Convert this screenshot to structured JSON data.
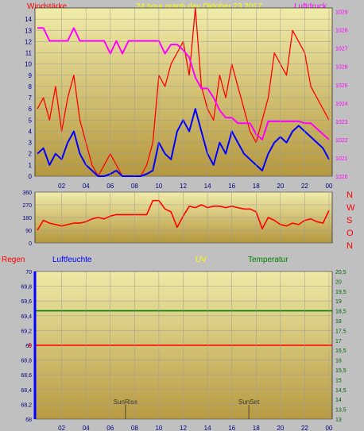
{
  "header": {
    "left_label": "Windstärke",
    "title": "24 hour graph day   Oktober 23 2017",
    "right_label": "Luftdruck"
  },
  "colors": {
    "panel_top": "#f0ecaa",
    "panel_bottom": "#b5973e",
    "grid": "#9c9c9c",
    "red": "#ff0000",
    "blue": "#0000ff",
    "magenta": "#ff00ff",
    "yellow": "#ffff00",
    "green": "#008000",
    "dark_green": "#006400"
  },
  "x_ticks": [
    "02",
    "04",
    "06",
    "08",
    "10",
    "12",
    "14",
    "16",
    "18",
    "20",
    "22",
    "00"
  ],
  "chart_data": [
    {
      "type": "line",
      "series": [
        {
          "axis": "left",
          "color": "#ff0000",
          "x": [
            0,
            0.5,
            1,
            1.5,
            2,
            2.5,
            3,
            3.5,
            4,
            4.5,
            5,
            5.5,
            6,
            6.5,
            7,
            7.5,
            8,
            8.5,
            9,
            9.5,
            10,
            10.5,
            11,
            11.5,
            12,
            12.5,
            13,
            13.5,
            14,
            14.5,
            15,
            15.5,
            16,
            16.5,
            17,
            17.5,
            18,
            18.5,
            19,
            19.5,
            20,
            20.5,
            21,
            21.5,
            22,
            22.5,
            23,
            23.5,
            24
          ],
          "y": [
            6,
            7,
            5,
            8,
            4,
            7,
            9,
            5,
            3,
            1,
            0,
            1,
            2,
            1,
            0,
            0,
            0,
            0,
            1,
            3,
            9,
            8,
            10,
            11,
            12,
            9,
            15,
            8,
            6,
            5,
            9,
            7,
            10,
            8,
            6,
            4,
            3,
            5,
            7,
            11,
            10,
            9,
            13,
            12,
            11,
            8,
            7,
            6,
            5
          ]
        },
        {
          "axis": "left",
          "color": "#0000ff",
          "x": [
            0,
            0.5,
            1,
            1.5,
            2,
            2.5,
            3,
            3.5,
            4,
            4.5,
            5,
            5.5,
            6,
            6.5,
            7,
            7.5,
            8,
            8.5,
            9,
            9.5,
            10,
            10.5,
            11,
            11.5,
            12,
            12.5,
            13,
            13.5,
            14,
            14.5,
            15,
            15.5,
            16,
            16.5,
            17,
            17.5,
            18,
            18.5,
            19,
            19.5,
            20,
            20.5,
            21,
            21.5,
            22,
            22.5,
            23,
            23.5,
            24
          ],
          "y": [
            2,
            2.5,
            1,
            2,
            1.5,
            3,
            4,
            2,
            1,
            0.5,
            0,
            0,
            0.2,
            0.5,
            0,
            0,
            0,
            0,
            0.2,
            0.5,
            3,
            2,
            1.5,
            4,
            5,
            4,
            6,
            4,
            2,
            1,
            3,
            2,
            4,
            3,
            2,
            1.5,
            1,
            0.5,
            2,
            3,
            3.5,
            3,
            4,
            4.5,
            4,
            3.5,
            3,
            2.5,
            1.5
          ]
        },
        {
          "axis": "right",
          "color": "#ff00ff",
          "x": [
            0,
            0.5,
            1,
            1.5,
            2,
            2.5,
            3,
            3.5,
            4,
            4.5,
            5,
            5.5,
            6,
            6.5,
            7,
            7.5,
            8,
            8.5,
            9,
            9.5,
            10,
            10.5,
            11,
            11.5,
            12,
            12.5,
            13,
            13.5,
            14,
            14.5,
            15,
            15.5,
            16,
            16.5,
            17,
            17.5,
            18,
            18.5,
            19,
            19.5,
            20,
            20.5,
            21,
            21.5,
            22,
            22.5,
            23,
            23.5,
            24
          ],
          "y": [
            1028.1,
            1028.1,
            1027.4,
            1027.4,
            1027.4,
            1027.4,
            1028.1,
            1027.4,
            1027.4,
            1027.4,
            1027.4,
            1027.4,
            1026.7,
            1027.4,
            1026.7,
            1027.4,
            1027.4,
            1027.4,
            1027.4,
            1027.4,
            1027.4,
            1026.7,
            1027.2,
            1027.2,
            1026.9,
            1026.5,
            1025.4,
            1024.8,
            1024.8,
            1024.3,
            1023.6,
            1023.2,
            1023.2,
            1022.9,
            1022.9,
            1022.9,
            1022.3,
            1022.0,
            1023.0,
            1023.0,
            1023.0,
            1023.0,
            1023.0,
            1023.0,
            1022.9,
            1022.9,
            1022.6,
            1022.3,
            1022.0
          ]
        }
      ],
      "y_left": {
        "ticks": [
          "0",
          "1",
          "2",
          "3",
          "4",
          "5",
          "6",
          "7",
          "8",
          "9",
          "10",
          "11",
          "12",
          "13",
          "14"
        ],
        "ylim": [
          0,
          15
        ]
      },
      "y_right": {
        "ticks": [
          "1020",
          "1021",
          "1022",
          "1023",
          "1024",
          "1025",
          "1026",
          "1027",
          "1028",
          "1029"
        ],
        "ylim": [
          1020,
          1029.2
        ]
      }
    },
    {
      "type": "line",
      "series": [
        {
          "axis": "left",
          "color": "#ff0000",
          "x": [
            0,
            0.5,
            1,
            1.5,
            2,
            2.5,
            3,
            3.5,
            4,
            4.5,
            5,
            5.5,
            6,
            6.5,
            7,
            7.5,
            8,
            8.5,
            9,
            9.5,
            10,
            10.5,
            11,
            11.5,
            12,
            12.5,
            13,
            13.5,
            14,
            14.5,
            15,
            15.5,
            16,
            16.5,
            17,
            17.5,
            18,
            18.5,
            19,
            19.5,
            20,
            20.5,
            21,
            21.5,
            22,
            22.5,
            23,
            23.5,
            24
          ],
          "y": [
            90,
            160,
            140,
            130,
            120,
            130,
            140,
            140,
            150,
            170,
            180,
            170,
            190,
            200,
            200,
            200,
            200,
            200,
            200,
            300,
            300,
            240,
            220,
            110,
            190,
            260,
            250,
            270,
            250,
            260,
            260,
            250,
            260,
            250,
            240,
            240,
            220,
            100,
            180,
            160,
            130,
            120,
            140,
            130,
            160,
            170,
            150,
            140,
            230
          ]
        }
      ],
      "y_left": {
        "ticks": [
          "0",
          "90",
          "180",
          "270",
          "360"
        ],
        "ylim": [
          0,
          360
        ]
      },
      "direction_labels": [
        "N",
        "W",
        "S",
        "O",
        "N"
      ]
    },
    {
      "type": "line",
      "legend": [
        {
          "label": "Regen",
          "color": "#ff0000"
        },
        {
          "label": "Luftfeuchte",
          "color": "#0000ff"
        },
        {
          "label": "UV",
          "color": "#ffff00"
        },
        {
          "label": "Temperatur",
          "color": "#008000"
        }
      ],
      "series": [
        {
          "axis": "left",
          "color": "#ff0000",
          "x": [
            0,
            24
          ],
          "y": [
            69,
            69
          ]
        },
        {
          "axis": "right",
          "color": "#008000",
          "x": [
            0,
            24
          ],
          "y": [
            18.5,
            18.5
          ]
        }
      ],
      "rain_tick_label": "0",
      "y_left": {
        "ticks": [
          "68",
          "68,2",
          "68,4",
          "68,6",
          "68,8",
          "69",
          "69,2",
          "69,4",
          "69,6",
          "69,8",
          "70"
        ],
        "ylim": [
          68,
          70
        ]
      },
      "y_right": {
        "ticks": [
          "13",
          "13,5",
          "14",
          "14,5",
          "15",
          "15,5",
          "16",
          "16,5",
          "17",
          "17,5",
          "18",
          "18,5",
          "19",
          "19,5",
          "20",
          "20,5"
        ],
        "ylim": [
          13,
          20.5
        ]
      },
      "annotations": [
        {
          "text": "SunRise",
          "x": 7.25
        },
        {
          "text": "SunSet",
          "x": 17.4
        }
      ]
    }
  ]
}
